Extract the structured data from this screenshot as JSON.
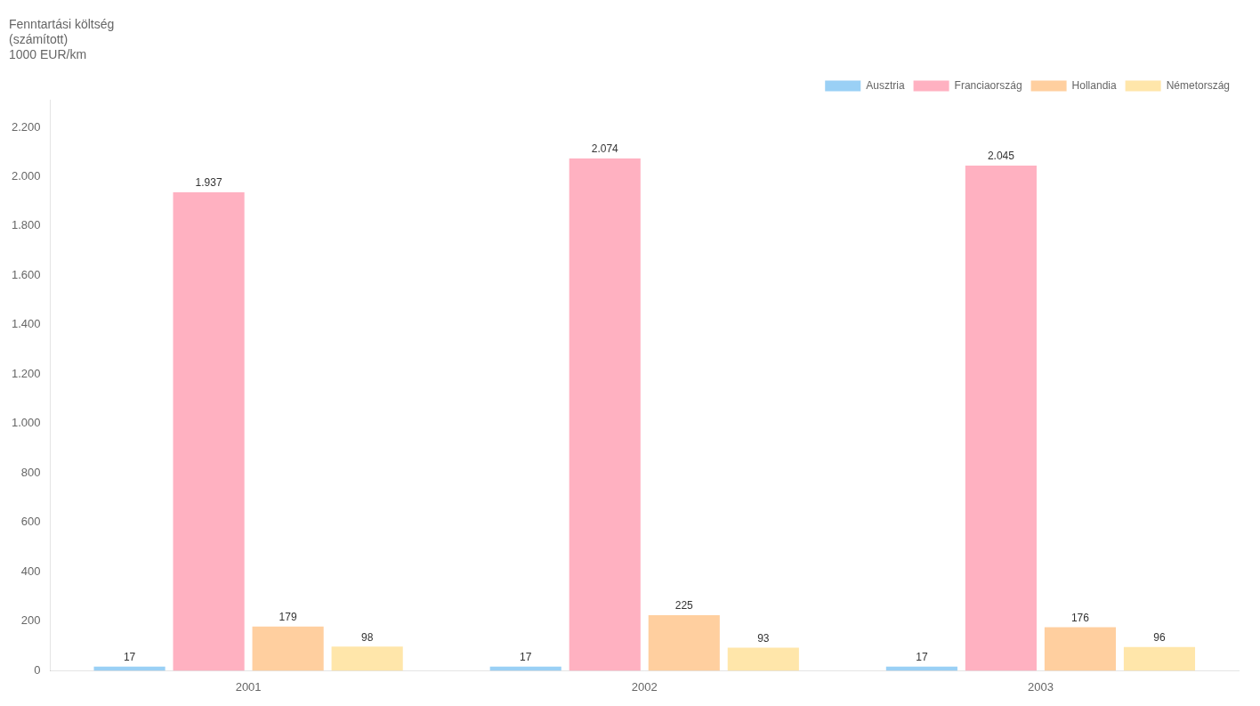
{
  "chart_data": {
    "type": "bar",
    "title": "Fenntartási költség\n(számított)\n1000 EUR/km",
    "categories": [
      "2001",
      "2002",
      "2003"
    ],
    "series": [
      {
        "name": "Ausztria",
        "values": [
          17,
          17,
          17
        ],
        "value_labels": [
          "17",
          "17",
          "17"
        ]
      },
      {
        "name": "Franciaország",
        "values": [
          1937,
          2074,
          2045
        ],
        "value_labels": [
          "1.937",
          "2.074",
          "2.045"
        ]
      },
      {
        "name": "Hollandia",
        "values": [
          179,
          225,
          176
        ],
        "value_labels": [
          "179",
          "225",
          "176"
        ]
      },
      {
        "name": "Németország",
        "values": [
          98,
          93,
          96
        ],
        "value_labels": [
          "98",
          "93",
          "96"
        ]
      }
    ],
    "ylim": [
      0,
      2310
    ],
    "yticks": [
      0,
      200,
      400,
      600,
      800,
      {
        "value": 1000,
        "label": "1.000"
      },
      {
        "value": 1200,
        "label": "1.200"
      },
      {
        "value": 1400,
        "label": "1.400"
      },
      {
        "value": 1600,
        "label": "1.600"
      },
      {
        "value": 1800,
        "label": "1.800"
      },
      {
        "value": 2000,
        "label": "2.000"
      },
      {
        "value": 2200,
        "label": "2.200"
      }
    ],
    "grid": false,
    "legend": "upper right",
    "data_labels": true
  }
}
